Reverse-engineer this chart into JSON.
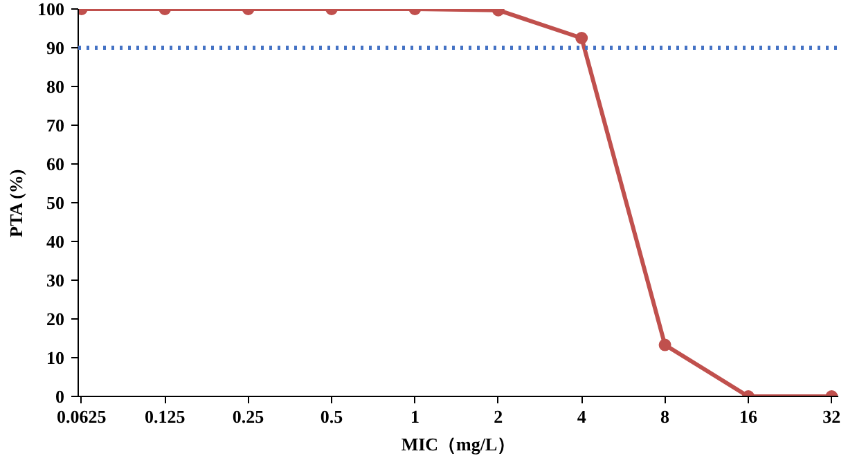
{
  "chart_data": {
    "type": "line",
    "xlabel": "MIC（mg/L）",
    "ylabel": "PTA (%)",
    "categories": [
      "0.0625",
      "0.125",
      "0.25",
      "0.5",
      "1",
      "2",
      "4",
      "8",
      "16",
      "32"
    ],
    "series": [
      {
        "color": "#c0504d",
        "values": [
          100,
          100,
          100,
          100,
          100,
          99.7,
          92.5,
          13.3,
          0,
          0
        ]
      }
    ],
    "ylim": [
      0,
      100
    ],
    "yticks": [
      0,
      10,
      20,
      30,
      40,
      50,
      60,
      70,
      80,
      90,
      100
    ],
    "ref_lines": [
      {
        "axis": "y",
        "value": 90,
        "label": null,
        "color": "#4472c4",
        "line_style": "dotted"
      }
    ],
    "grid": false,
    "marker": "circle",
    "line_style": "solid"
  }
}
